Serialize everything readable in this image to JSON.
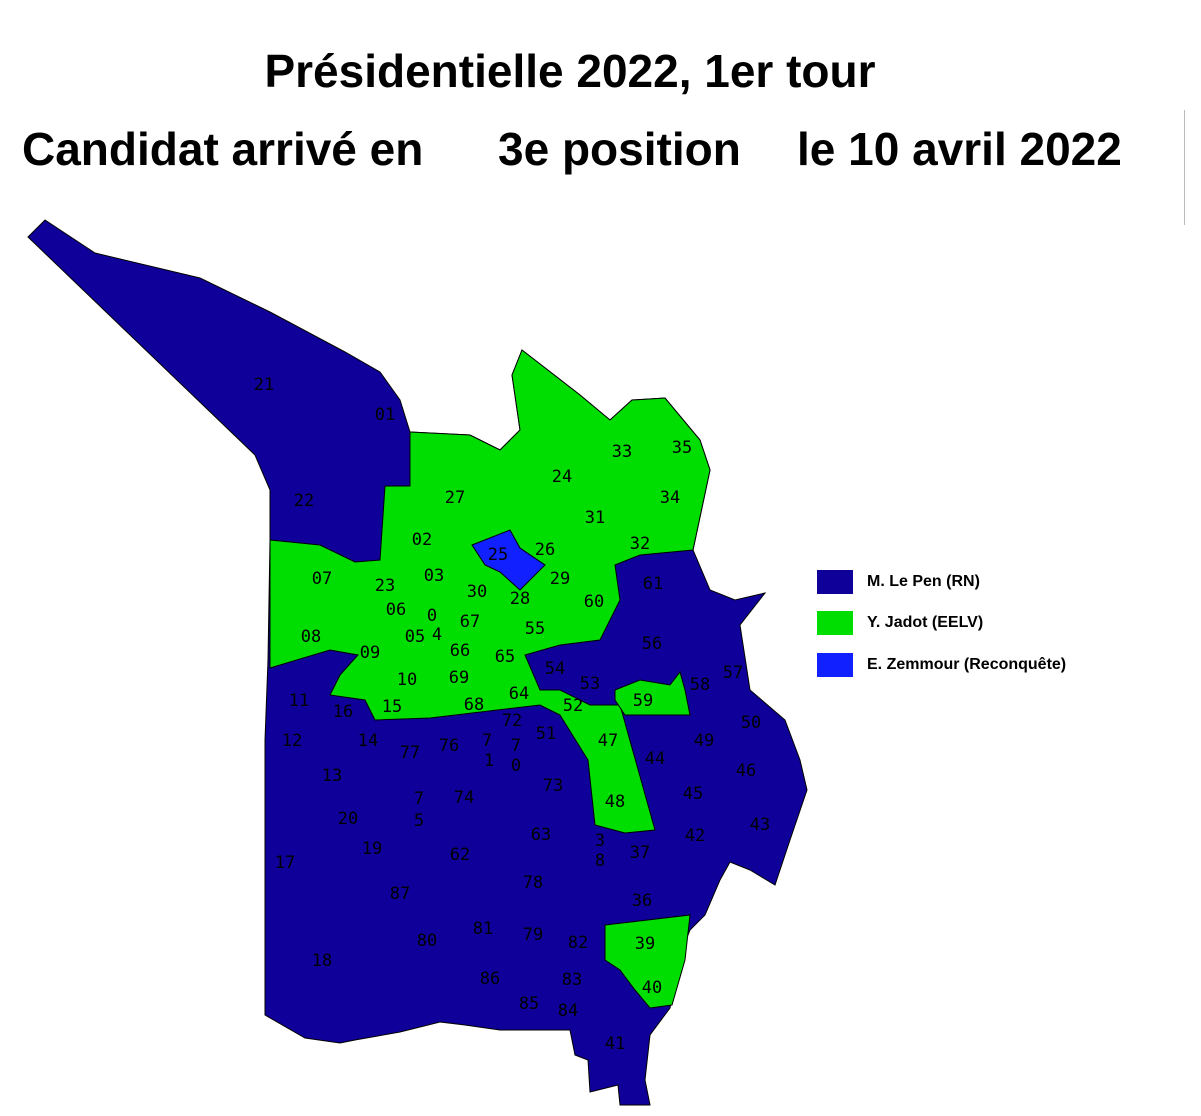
{
  "title": "Présidentielle 2022, 1er tour",
  "subtitle": {
    "part1": "Candidat arrivé en",
    "part2": "3e position",
    "part3": "le 10 avril 2022"
  },
  "legend": [
    {
      "label": "M. Le Pen (RN)",
      "color": "#10009a",
      "key": "lepen"
    },
    {
      "label": "Y. Jadot (EELV)",
      "color": "#00dd00",
      "key": "jadot"
    },
    {
      "label": "E. Zemmour (Reconquête)",
      "color": "#1020ff",
      "key": "zemmour"
    }
  ],
  "regions": {
    "jadot": [
      "02",
      "03",
      "04",
      "05",
      "06",
      "07",
      "08",
      "09",
      "10",
      "15",
      "23",
      "24",
      "26",
      "27",
      "28",
      "29",
      "30",
      "31",
      "32",
      "33",
      "34",
      "35",
      "39",
      "40",
      "47",
      "48",
      "52",
      "55",
      "59",
      "60",
      "64",
      "65",
      "66",
      "67",
      "68",
      "69"
    ],
    "zemmour": [
      "25"
    ],
    "lepen": [
      "01",
      "11",
      "12",
      "13",
      "14",
      "16",
      "17",
      "18",
      "19",
      "20",
      "21",
      "22",
      "36",
      "37",
      "38",
      "41",
      "42",
      "43",
      "44",
      "45",
      "46",
      "49",
      "50",
      "51",
      "53",
      "54",
      "56",
      "57",
      "58",
      "61",
      "62",
      "63",
      "70",
      "71",
      "72",
      "73",
      "74",
      "75",
      "76",
      "77",
      "78",
      "79",
      "80",
      "81",
      "82",
      "83",
      "84",
      "85",
      "86",
      "87"
    ]
  }
}
